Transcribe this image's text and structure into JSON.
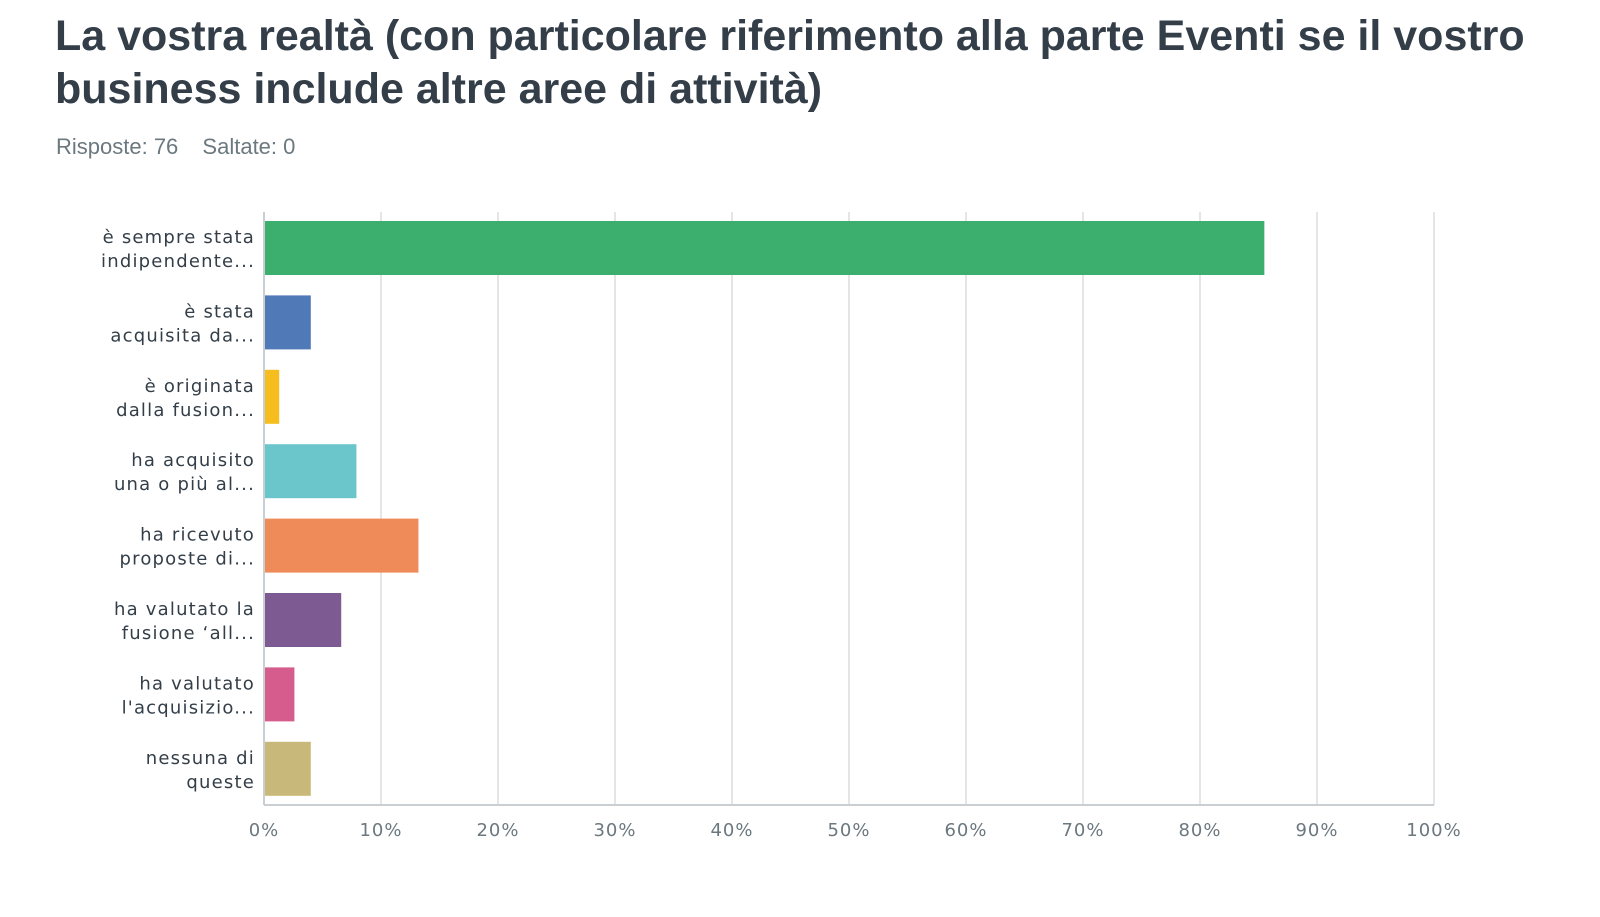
{
  "question": {
    "title": "La vostra realtà (con particolare riferimento alla parte Eventi se il vostro business include altre aree di attività)",
    "answered_label": "Risposte: 76",
    "skipped_label": "Saltate: 0"
  },
  "chart_data": {
    "type": "bar",
    "orientation": "horizontal",
    "title": "La vostra realtà (con particolare riferimento alla parte Eventi se il vostro business include altre aree di attività)",
    "xlabel": "",
    "ylabel": "",
    "xlim": [
      0,
      100
    ],
    "grid": true,
    "categories": [
      [
        "è sempre stata",
        "indipendente..."
      ],
      [
        "è stata",
        "acquisita da..."
      ],
      [
        "è originata",
        "dalla fusion..."
      ],
      [
        "ha acquisito",
        "una o più al..."
      ],
      [
        "ha ricevuto",
        "proposte di..."
      ],
      [
        "ha valutato la",
        "fusione ‘all..."
      ],
      [
        "ha valutato",
        "l'acquisizio..."
      ],
      [
        "nessuna di",
        "queste"
      ]
    ],
    "values": [
      85.5,
      4.0,
      1.3,
      7.9,
      13.2,
      6.6,
      2.6,
      4.0
    ],
    "colors": [
      "#3cae6d",
      "#5079b8",
      "#f5bd1d",
      "#6bc6cc",
      "#ef8b58",
      "#7d5a91",
      "#d55c8d",
      "#c8b97a"
    ],
    "ticks": [
      "0%",
      "10%",
      "20%",
      "30%",
      "40%",
      "50%",
      "60%",
      "70%",
      "80%",
      "90%",
      "100%"
    ]
  }
}
